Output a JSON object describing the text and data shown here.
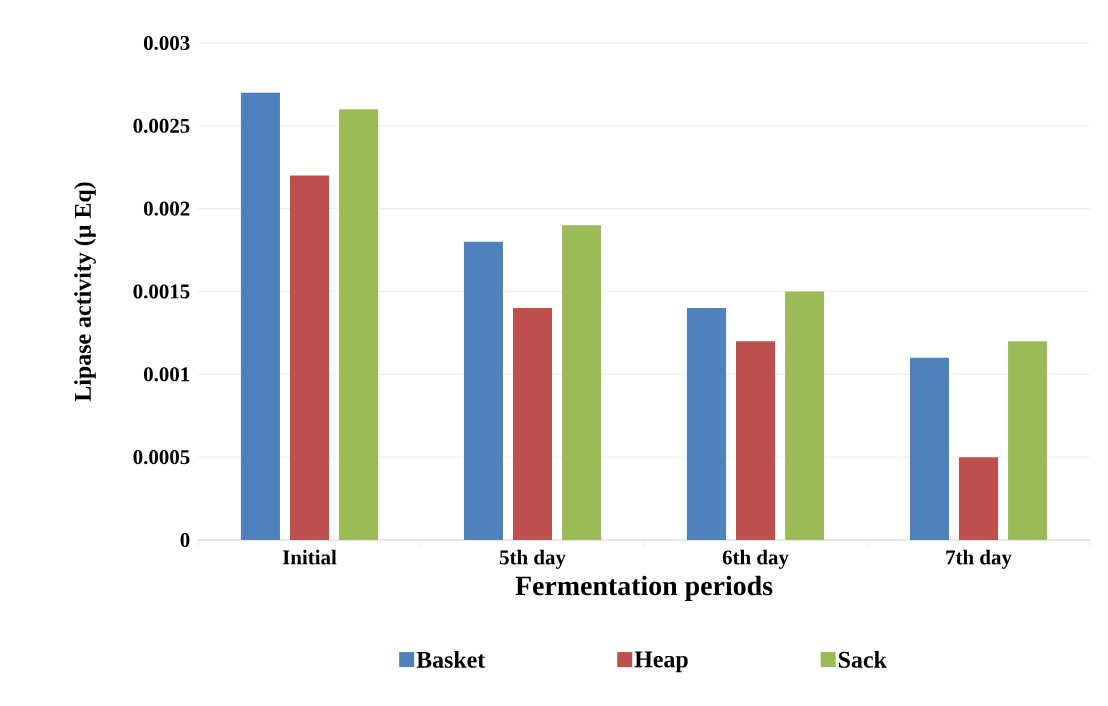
{
  "chart_data": {
    "type": "bar",
    "xlabel": "Fermentation periods",
    "ylabel": "Lipase activity (µ Eq)",
    "categories": [
      "Initial",
      "5th day",
      "6th day",
      "7th day"
    ],
    "series": [
      {
        "name": "Basket",
        "color": "#4f81bd",
        "values": [
          0.0027,
          0.0018,
          0.0014,
          0.0011
        ]
      },
      {
        "name": "Heap",
        "color": "#c0504d",
        "values": [
          0.0022,
          0.0014,
          0.0012,
          0.0005
        ]
      },
      {
        "name": "Sack",
        "color": "#9bbb59",
        "values": [
          0.0026,
          0.0019,
          0.0015,
          0.0012
        ]
      }
    ],
    "ylim": [
      0,
      0.003
    ],
    "yticks": [
      0,
      0.0005,
      0.001,
      0.0015,
      0.002,
      0.0025,
      0.003
    ],
    "grid": "y",
    "legend": "bottom"
  }
}
